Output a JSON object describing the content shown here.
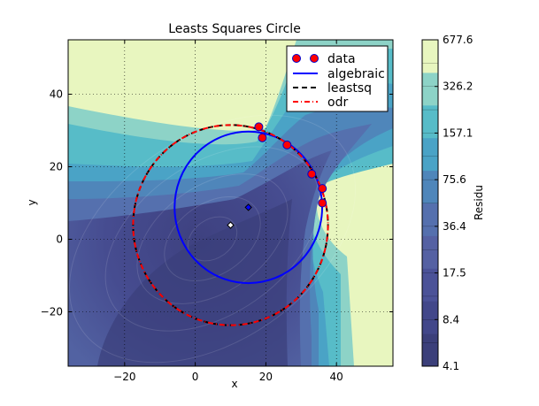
{
  "chart_data": {
    "type": "contour",
    "title": "Leasts Squares Circle",
    "xlabel": "x",
    "ylabel": "y",
    "xlim": [
      -36,
      56
    ],
    "ylim": [
      -35,
      55
    ],
    "xticks": [
      -20,
      0,
      20,
      40
    ],
    "yticks": [
      -20,
      0,
      20,
      40
    ],
    "xtick_labels": [
      "−20",
      "0",
      "20",
      "40"
    ],
    "ytick_labels": [
      "−20",
      "0",
      "20",
      "40"
    ],
    "grid": true,
    "legend_position": "top-right",
    "data_points": {
      "name": "data",
      "x": [
        36,
        36,
        33,
        26,
        19,
        18
      ],
      "y": [
        14,
        10,
        18,
        26,
        28,
        31
      ],
      "color": "#ff0000",
      "edge_color": "#0000cc"
    },
    "fits": [
      {
        "name": "algebraic",
        "center": [
          15.05,
          8.8
        ],
        "radius": 20.9,
        "color": "#0000ff",
        "style": "solid"
      },
      {
        "name": "leastsq",
        "center": [
          10.0,
          3.9
        ],
        "radius": 27.6,
        "color": "#000000",
        "style": "dashed"
      },
      {
        "name": "odr",
        "center": [
          10.0,
          3.9
        ],
        "radius": 27.6,
        "color": "#ff0000",
        "style": "dashdot"
      }
    ],
    "centers": [
      {
        "name": "algebraic",
        "x": 15.05,
        "y": 8.8,
        "color": "#0000ff"
      },
      {
        "name": "leastsq",
        "x": 10.0,
        "y": 3.9,
        "color": "#ffffff"
      }
    ],
    "colorbar": {
      "label": "Residu",
      "tick_labels": [
        "677.6",
        "326.2",
        "157.1",
        "75.6",
        "36.4",
        "17.5",
        "8.4",
        "4.1"
      ],
      "colors": [
        "#3b3f7a",
        "#42478a",
        "#4b5298",
        "#5561a3",
        "#5570ae",
        "#4f86ba",
        "#4aa3c6",
        "#57bcc8",
        "#8dd3c7",
        "#e8f6bf"
      ]
    }
  }
}
